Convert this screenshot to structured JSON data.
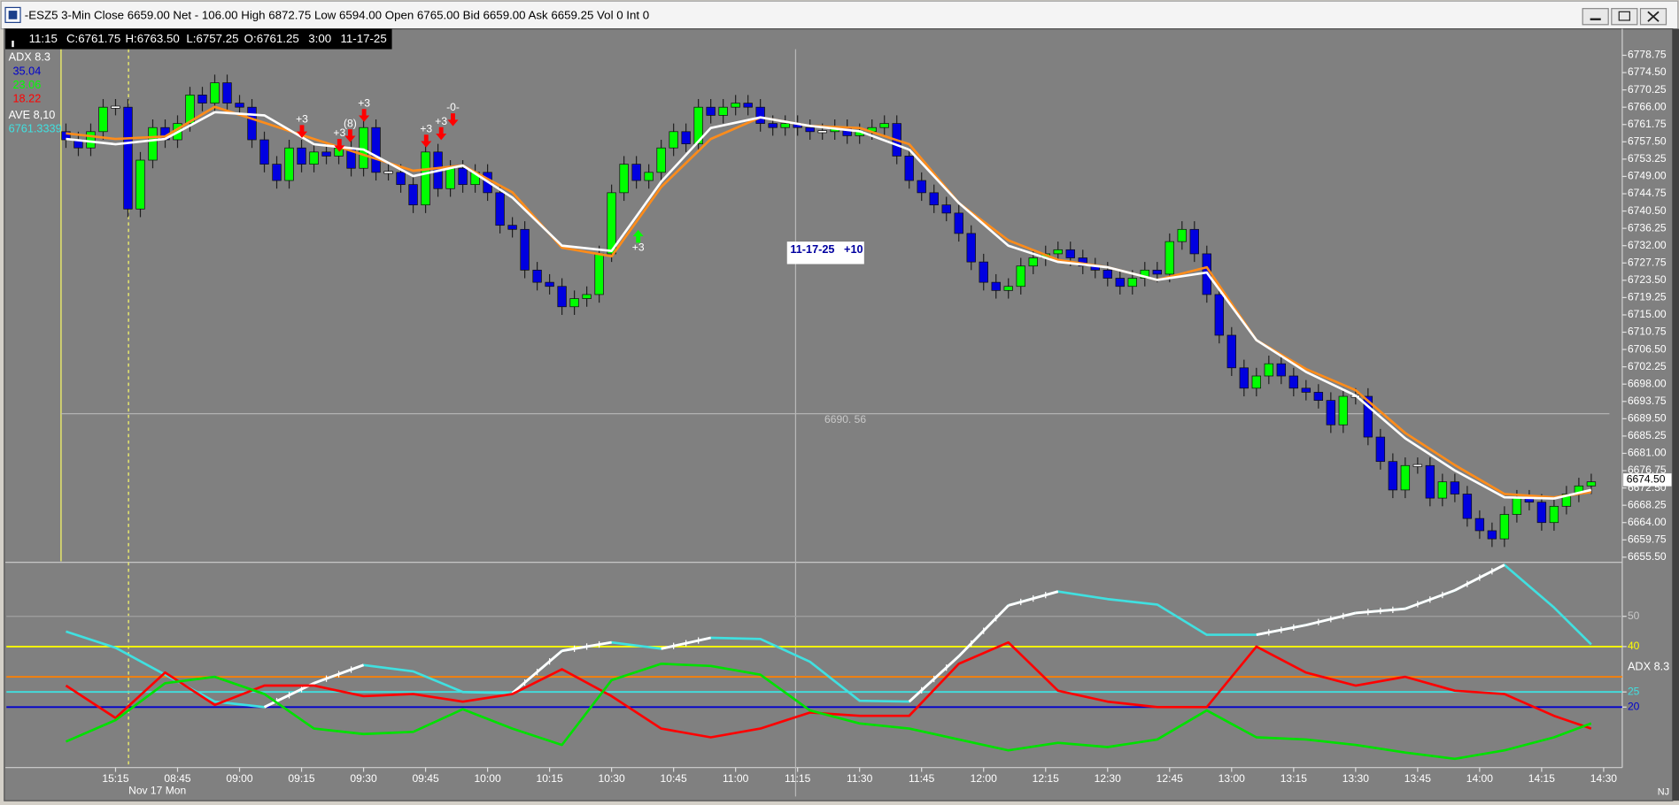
{
  "window": {
    "title": "-ESZ5 3-Min Close 6659.00 Net - 106.00 High 6872.75 Low 6594.00 Open 6765.00 Bid 6659.00 Ask 6659.25 Vol 0 Int 0"
  },
  "info_bar": [
    "11:15",
    "C:6761.75",
    "H:6763.50",
    "L:6757.25",
    "O:6761.25",
    "3:00",
    "11-17-25"
  ],
  "study_labels": [
    "ADX  8.3",
    "35.04",
    "23.06",
    "18.22",
    "AVE  8,10",
    "6761.3339"
  ],
  "signals": [
    "+3",
    "+3",
    "(8)",
    "+3",
    "+3",
    "+3",
    "-0-",
    "+3"
  ],
  "note": "11-17-25   +10",
  "date_label": "Nov 17 Mon",
  "footer": "NJ",
  "chart_data": [
    {
      "type": "candlestick",
      "up_color": "#00ff00",
      "down_color": "#0000e0",
      "flat_color": "#ffffff",
      "xlim": [
        -4.8,
        125.5
      ],
      "ylim": [
        6654.5,
        6780.25
      ],
      "x": [
        0,
        1,
        2,
        3,
        4,
        5,
        6,
        7,
        8,
        9,
        10,
        11,
        12,
        13,
        14,
        15,
        16,
        17,
        18,
        19,
        20,
        21,
        22,
        23,
        24,
        25,
        26,
        27,
        28,
        29,
        30,
        31,
        32,
        33,
        34,
        35,
        36,
        37,
        38,
        39,
        40,
        41,
        42,
        43,
        44,
        45,
        46,
        47,
        48,
        49,
        50,
        51,
        52,
        53,
        54,
        55,
        56,
        57,
        58,
        59,
        60,
        61,
        62,
        63,
        64,
        65,
        66,
        67,
        68,
        69,
        70,
        71,
        72,
        73,
        74,
        75,
        76,
        77,
        78,
        79,
        80,
        81,
        82,
        83,
        84,
        85,
        86,
        87,
        88,
        89,
        90,
        91,
        92,
        93,
        94,
        95,
        96,
        97,
        98,
        99,
        100,
        101,
        102,
        103,
        104,
        105,
        106,
        107,
        108,
        109,
        110,
        111,
        112,
        113,
        114,
        115,
        116,
        117,
        118,
        119,
        120,
        121,
        122,
        123
      ],
      "open": [
        6760,
        6758,
        6756,
        6760,
        6766,
        6766,
        6741,
        6753,
        6761,
        6758,
        6762,
        6769,
        6767,
        6772,
        6767,
        6766,
        6758,
        6752,
        6748,
        6756,
        6752,
        6755,
        6754,
        6756,
        6751,
        6761,
        6750,
        6750,
        6747,
        6742,
        6755,
        6746,
        6751,
        6747,
        6750,
        6745,
        6737,
        6736,
        6726,
        6723,
        6722,
        6717,
        6719,
        6720,
        6730,
        6745,
        6752,
        6748,
        6750,
        6756,
        6760,
        6757,
        6766,
        6764,
        6766,
        6767,
        6766,
        6762,
        6761,
        6762,
        6761,
        6760,
        6760,
        6761,
        6759,
        6760,
        6761,
        6762,
        6754,
        6748,
        6745,
        6742,
        6740,
        6735,
        6728,
        6723,
        6721,
        6722,
        6727,
        6729,
        6730,
        6731,
        6729,
        6727,
        6726,
        6724,
        6722,
        6724,
        6726,
        6725,
        6733,
        6736,
        6730,
        6720,
        6710,
        6702,
        6697,
        6700,
        6703,
        6700,
        6697,
        6696,
        6694,
        6688,
        6695,
        6695,
        6685,
        6679,
        6672,
        6678,
        6678,
        6670,
        6674,
        6671,
        6665,
        6662,
        6660,
        6666,
        6670,
        6669,
        6664,
        6668,
        6671,
        6673
      ],
      "high": [
        6762,
        6760,
        6762,
        6768,
        6768,
        6768,
        6755,
        6763,
        6763,
        6764,
        6771,
        6771,
        6774,
        6774,
        6769,
        6768,
        6760,
        6754,
        6758,
        6758,
        6757,
        6757,
        6758,
        6758,
        6763,
        6763,
        6752,
        6752,
        6749,
        6757,
        6757,
        6753,
        6753,
        6752,
        6752,
        6747,
        6739,
        6738,
        6728,
        6725,
        6724,
        6721,
        6722,
        6732,
        6747,
        6754,
        6754,
        6752,
        6758,
        6762,
        6762,
        6768,
        6768,
        6768,
        6769,
        6769,
        6768,
        6764,
        6764,
        6764,
        6763,
        6762,
        6763,
        6763,
        6762,
        6763,
        6764,
        6764,
        6756,
        6750,
        6747,
        6744,
        6742,
        6737,
        6730,
        6725,
        6724,
        6729,
        6731,
        6732,
        6733,
        6733,
        6731,
        6729,
        6728,
        6726,
        6726,
        6728,
        6728,
        6735,
        6738,
        6738,
        6732,
        6722,
        6712,
        6704,
        6702,
        6705,
        6705,
        6702,
        6699,
        6698,
        6696,
        6697,
        6697,
        6697,
        6687,
        6681,
        6680,
        6680,
        6680,
        6676,
        6676,
        6673,
        6667,
        6664,
        6668,
        6672,
        6672,
        6671,
        6670,
        6673,
        6675,
        6676
      ],
      "low": [
        6756,
        6754,
        6754,
        6758,
        6764,
        6739,
        6739,
        6751,
        6756,
        6756,
        6760,
        6765,
        6765,
        6765,
        6764,
        6756,
        6750,
        6746,
        6746,
        6750,
        6750,
        6752,
        6752,
        6749,
        6749,
        6748,
        6748,
        6745,
        6740,
        6740,
        6744,
        6744,
        6745,
        6745,
        6743,
        6735,
        6734,
        6724,
        6721,
        6720,
        6715,
        6715,
        6717,
        6718,
        6728,
        6743,
        6746,
        6746,
        6748,
        6754,
        6755,
        6755,
        6762,
        6762,
        6764,
        6764,
        6760,
        6759,
        6759,
        6759,
        6758,
        6758,
        6758,
        6757,
        6757,
        6758,
        6759,
        6752,
        6746,
        6743,
        6740,
        6738,
        6733,
        6726,
        6721,
        6719,
        6719,
        6720,
        6725,
        6727,
        6728,
        6727,
        6725,
        6724,
        6722,
        6720,
        6720,
        6722,
        6723,
        6723,
        6731,
        6728,
        6718,
        6708,
        6700,
        6695,
        6695,
        6698,
        6698,
        6695,
        6694,
        6692,
        6686,
        6686,
        6693,
        6683,
        6677,
        6670,
        6670,
        6676,
        6668,
        6668,
        6669,
        6663,
        6660,
        6658,
        6658,
        6664,
        6667,
        6662,
        6662,
        6666,
        6669,
        6671
      ],
      "close": [
        6758,
        6756,
        6760,
        6766,
        6766,
        6741,
        6753,
        6761,
        6758,
        6762,
        6769,
        6767,
        6772,
        6767,
        6766,
        6758,
        6752,
        6748,
        6756,
        6752,
        6755,
        6754,
        6756,
        6751,
        6761,
        6750,
        6750,
        6747,
        6742,
        6755,
        6746,
        6751,
        6747,
        6750,
        6745,
        6737,
        6736,
        6726,
        6723,
        6722,
        6717,
        6719,
        6720,
        6730,
        6745,
        6752,
        6748,
        6750,
        6756,
        6760,
        6757,
        6766,
        6764,
        6766,
        6767,
        6766,
        6762,
        6761,
        6762,
        6761,
        6760,
        6760,
        6761,
        6759,
        6760,
        6761,
        6762,
        6754,
        6748,
        6745,
        6742,
        6740,
        6735,
        6728,
        6723,
        6721,
        6722,
        6727,
        6729,
        6730,
        6731,
        6729,
        6727,
        6726,
        6724,
        6722,
        6724,
        6726,
        6725,
        6733,
        6736,
        6730,
        6720,
        6710,
        6702,
        6697,
        6700,
        6703,
        6700,
        6697,
        6696,
        6694,
        6688,
        6695,
        6695,
        6685,
        6679,
        6672,
        6678,
        6678,
        6670,
        6674,
        6671,
        6665,
        6662,
        6660,
        6666,
        6670,
        6669,
        6664,
        6668,
        6671,
        6673,
        6674
      ],
      "xticks": [
        {
          "value": 4,
          "label": "15:15"
        },
        {
          "value": 9,
          "label": "08:45"
        },
        {
          "value": 14,
          "label": "09:00"
        },
        {
          "value": 19,
          "label": "09:15"
        },
        {
          "value": 24,
          "label": "09:30"
        },
        {
          "value": 29,
          "label": "09:45"
        },
        {
          "value": 34,
          "label": "10:00"
        },
        {
          "value": 39,
          "label": "10:15"
        },
        {
          "value": 44,
          "label": "10:30"
        },
        {
          "value": 49,
          "label": "10:45"
        },
        {
          "value": 54,
          "label": "11:00"
        },
        {
          "value": 59,
          "label": "11:15"
        },
        {
          "value": 64,
          "label": "11:30"
        },
        {
          "value": 69,
          "label": "11:45"
        },
        {
          "value": 74,
          "label": "12:00"
        },
        {
          "value": 79,
          "label": "12:15"
        },
        {
          "value": 84,
          "label": "12:30"
        },
        {
          "value": 89,
          "label": "12:45"
        },
        {
          "value": 94,
          "label": "13:00"
        },
        {
          "value": 99,
          "label": "13:15"
        },
        {
          "value": 104,
          "label": "13:30"
        },
        {
          "value": 109,
          "label": "13:45"
        },
        {
          "value": 114,
          "label": "14:00"
        },
        {
          "value": 119,
          "label": "14:15"
        },
        {
          "value": 124,
          "label": "14:30"
        }
      ],
      "yticks": [
        6778.75,
        {
          "value": 6774.5,
          "label": "6774.50"
        },
        6770.25,
        {
          "value": 6766,
          "label": "6766.00"
        },
        6761.75,
        {
          "value": 6757.5,
          "label": "6757.50"
        },
        6753.25,
        {
          "value": 6749,
          "label": "6749.00"
        },
        6744.75,
        {
          "value": 6740.5,
          "label": "6740.50"
        },
        6736.25,
        {
          "value": 6732,
          "label": "6732.00"
        },
        6727.75,
        {
          "value": 6723.5,
          "label": "6723.50"
        },
        6719.25,
        {
          "value": 6715,
          "label": "6715.00"
        },
        6710.75,
        {
          "value": 6706.5,
          "label": "6706.50"
        },
        6702.25,
        {
          "value": 6698,
          "label": "6698.00"
        },
        6693.75,
        {
          "value": 6689.5,
          "label": "6689.50"
        },
        6685.25,
        {
          "value": 6681,
          "label": "6681.00"
        },
        6676.75,
        {
          "value": 6672.5,
          "label": "6672.50"
        },
        6668.25,
        {
          "value": 6664,
          "label": "6664.00"
        },
        6659.75,
        {
          "value": 6655.5,
          "label": "6655.50"
        }
      ],
      "last_price": {
        "value": 6674.5,
        "label": "6674.50"
      },
      "crosshair_label": "6690. 56"
    },
    {
      "type": "line",
      "xlim": [
        -4.8,
        125.5
      ],
      "ylim": [
        6654.5,
        6780.25
      ],
      "x": [
        0,
        4,
        8,
        12,
        16,
        20,
        24,
        28,
        32,
        36,
        40,
        44,
        48,
        52,
        56,
        60,
        64,
        68,
        72,
        76,
        80,
        84,
        88,
        92,
        96,
        100,
        104,
        108,
        112,
        116,
        120,
        123
      ],
      "series": [
        {
          "color": "#ff8c1a",
          "values": [
            6759.6,
            6758.2,
            6758.8,
            6766.1,
            6762.2,
            6758.2,
            6754.3,
            6750.4,
            6751.7,
            6745.1,
            6731.5,
            6729.4,
            6746.4,
            6758.2,
            6763.5,
            6761.4,
            6760.9,
            6756.9,
            6742.5,
            6733.3,
            6728.5,
            6726.7,
            6723.6,
            6726.7,
            6708.8,
            6701.7,
            6696.5,
            6686.0,
            6678.1,
            6671.0,
            6670.2,
            6671.5
          ]
        },
        {
          "color": "#ffffff",
          "values": [
            6758.2,
            6756.9,
            6758.2,
            6764.8,
            6764.0,
            6756.9,
            6755.6,
            6749.1,
            6751.7,
            6743.8,
            6732.0,
            6730.7,
            6747.7,
            6760.9,
            6763.5,
            6761.4,
            6760.1,
            6755.6,
            6742.5,
            6732.0,
            6728.0,
            6726.7,
            6723.6,
            6725.4,
            6708.8,
            6701.0,
            6695.2,
            6684.7,
            6676.8,
            6670.2,
            6669.9,
            6672.0
          ]
        }
      ]
    },
    {
      "type": "line",
      "title": "ADX  8.3",
      "xlim": [
        -4.8,
        125.5
      ],
      "ylim": [
        0,
        67.5
      ],
      "yticks": [
        50,
        40,
        25,
        20
      ],
      "grid": true,
      "levels": [
        {
          "value": 40,
          "color": "#ffff00"
        },
        {
          "value": 30,
          "color": "#ff8000"
        },
        {
          "value": 25,
          "color": "#40e0e0"
        },
        {
          "value": 20,
          "color": "#0000cc"
        }
      ],
      "x": [
        0,
        4,
        8,
        12,
        16,
        20,
        24,
        28,
        32,
        36,
        40,
        44,
        48,
        52,
        56,
        60,
        64,
        68,
        72,
        76,
        80,
        84,
        88,
        92,
        96,
        100,
        104,
        108,
        112,
        116,
        120,
        123
      ],
      "series": [
        {
          "color": "#40e0e0",
          "rising_color": "#ffffff",
          "values": [
            45.0,
            39.6,
            30.7,
            21.8,
            20.0,
            27.9,
            33.9,
            31.8,
            25.0,
            24.6,
            38.6,
            41.4,
            39.3,
            42.9,
            42.5,
            35.0,
            22.1,
            21.8,
            36.8,
            53.6,
            58.2,
            55.7,
            53.9,
            43.9,
            43.9,
            47.1,
            51.1,
            52.5,
            58.6,
            67.0,
            52.9,
            40.7
          ]
        },
        {
          "color": "#ff0000",
          "values": [
            27.1,
            16.4,
            31.4,
            20.7,
            27.1,
            27.1,
            23.6,
            24.3,
            21.8,
            24.3,
            32.5,
            23.6,
            12.9,
            10.0,
            12.9,
            18.2,
            17.1,
            17.1,
            34.3,
            41.4,
            25.4,
            21.8,
            20.0,
            20.0,
            40.0,
            31.4,
            27.1,
            30.0,
            25.4,
            24.3,
            17.1,
            12.9
          ]
        },
        {
          "color": "#00e000",
          "values": [
            8.6,
            15.7,
            27.9,
            30.0,
            24.3,
            12.9,
            11.1,
            11.8,
            19.3,
            12.9,
            7.5,
            28.9,
            34.3,
            33.6,
            30.7,
            18.9,
            14.6,
            12.9,
            9.3,
            5.7,
            8.2,
            6.8,
            9.3,
            18.9,
            10.0,
            9.3,
            7.5,
            5.0,
            2.9,
            5.7,
            10.0,
            14.6
          ]
        }
      ]
    }
  ]
}
